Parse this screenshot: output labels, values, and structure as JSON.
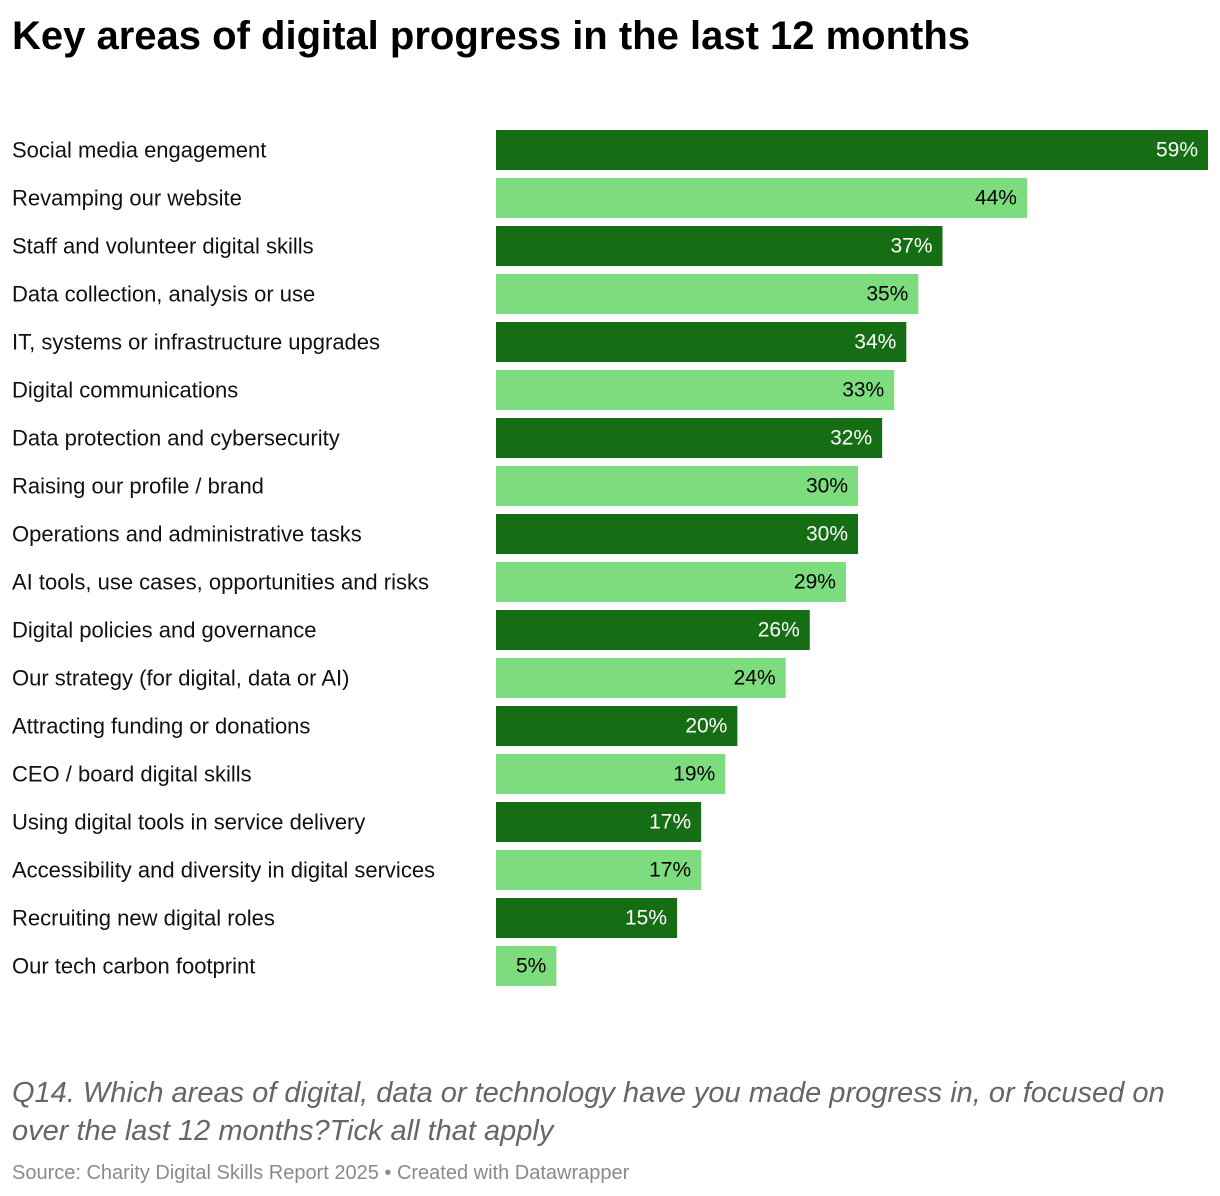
{
  "header": {
    "title": "Key areas of digital progress in the last 12 months"
  },
  "description": "Q14. Which areas of digital, data or technology have you made progress in, or focused on over the last 12 months?Tick all that apply",
  "footer": {
    "source": "Source: Charity Digital Skills Report 2025",
    "separator": " • ",
    "credit": "Created with Datawrapper"
  },
  "colors": {
    "dark_green": "#166e14",
    "light_green": "#7ddd7e",
    "label_on_dark": "#ffffff",
    "label_on_light": "#000000"
  },
  "chart_data": {
    "type": "bar",
    "orientation": "horizontal",
    "title": "Key areas of digital progress in the last 12 months",
    "xlabel": "",
    "ylabel": "",
    "xlim": [
      0,
      59
    ],
    "grid": false,
    "legend": "none",
    "value_suffix": "%",
    "categories": [
      "Social media engagement",
      "Revamping our website",
      "Staff and volunteer digital skills",
      "Data collection, analysis or use",
      "IT, systems or infrastructure upgrades",
      "Digital communications",
      "Data protection and cybersecurity",
      "Raising our profile / brand",
      "Operations and administrative tasks",
      "AI tools, use cases, opportunities and risks",
      "Digital policies and governance",
      "Our strategy (for digital, data or AI)",
      "Attracting funding or donations",
      "CEO / board digital skills",
      "Using digital tools in service delivery",
      "Accessibility and diversity in digital services",
      "Recruiting new digital roles",
      "Our tech carbon footprint"
    ],
    "values": [
      59,
      44,
      37,
      35,
      34,
      33,
      32,
      30,
      30,
      29,
      26,
      24,
      20,
      19,
      17,
      17,
      15,
      5
    ],
    "bar_colors": [
      "dark",
      "light",
      "dark",
      "light",
      "dark",
      "light",
      "dark",
      "light",
      "dark",
      "light",
      "dark",
      "light",
      "dark",
      "light",
      "dark",
      "light",
      "dark",
      "light"
    ]
  }
}
